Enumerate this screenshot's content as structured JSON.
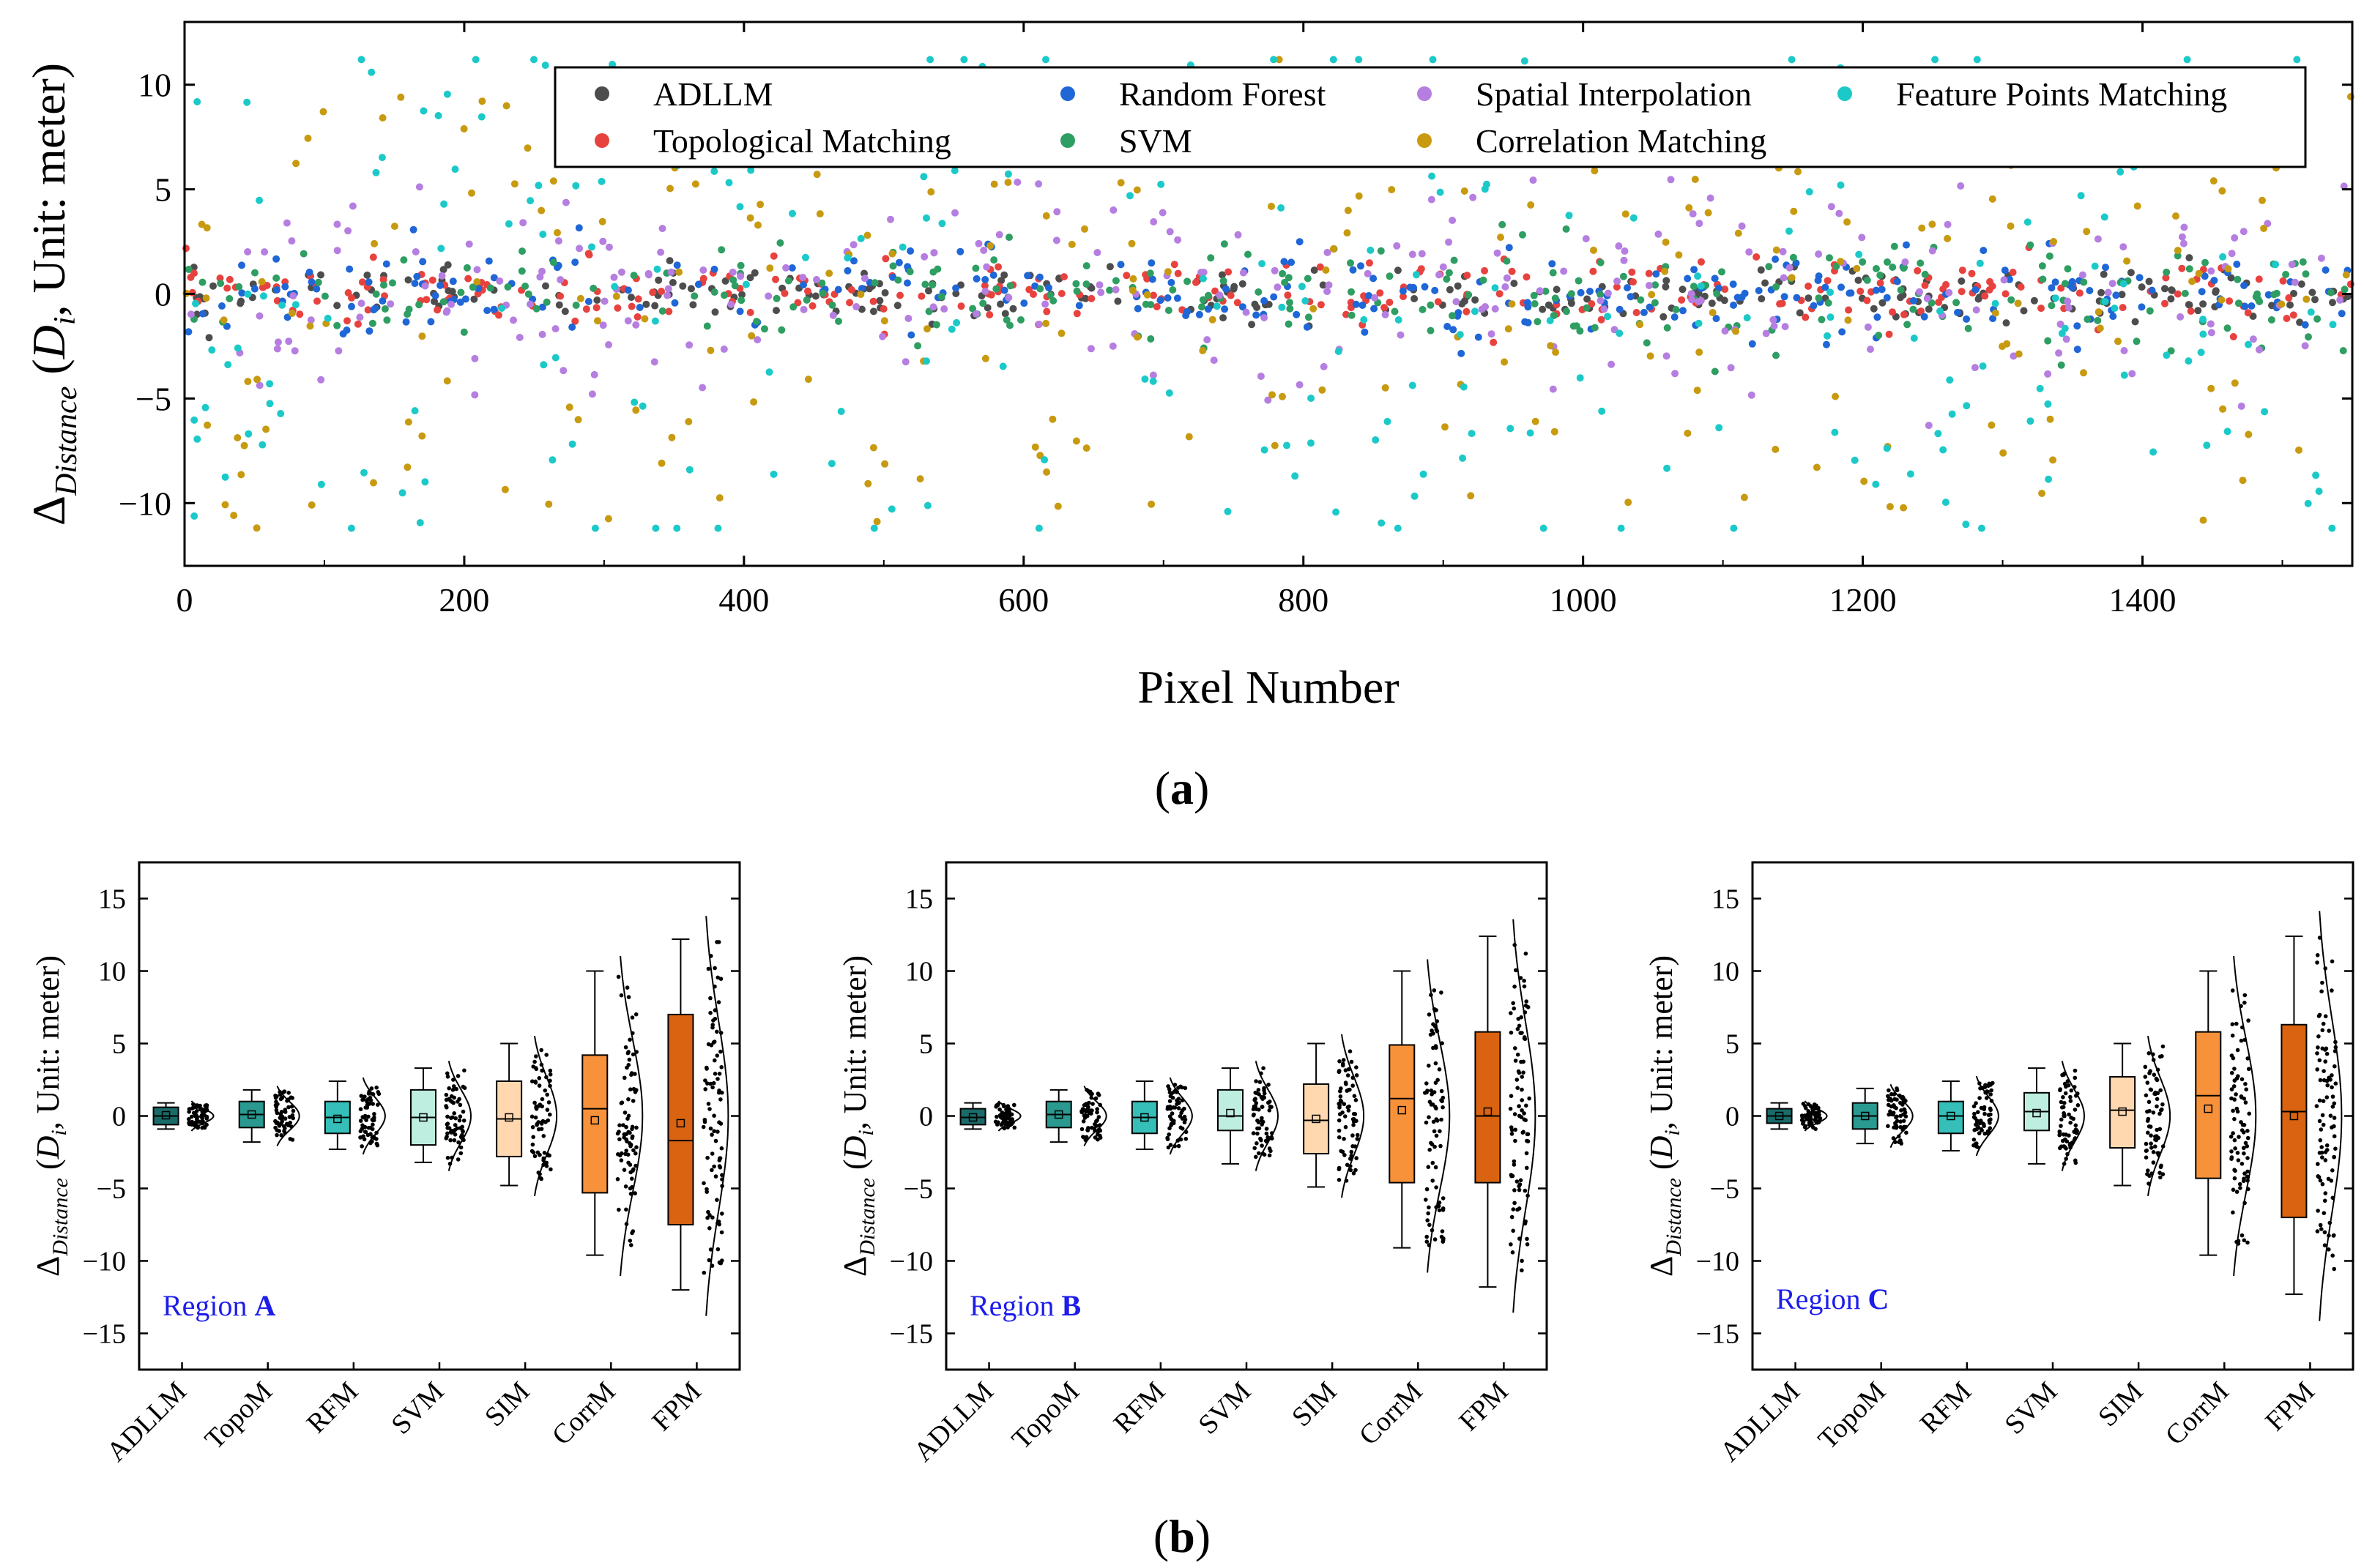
{
  "chart_data": [
    {
      "type": "scatter",
      "panel_label": "a",
      "xlabel": "Pixel Number",
      "ylabel": "Distance (D, Unit: meter)",
      "xlim": [
        0,
        1550
      ],
      "ylim": [
        -13,
        13
      ],
      "xticks": [
        0,
        200,
        400,
        600,
        800,
        1000,
        1200,
        1400
      ],
      "yticks": [
        -10,
        -5,
        0,
        5,
        10
      ],
      "legend_position": "top-right",
      "series": [
        {
          "name": "ADLLM",
          "color": "#4d4d4d",
          "spread": 0.6
        },
        {
          "name": "Topological Matching",
          "color": "#e8423f",
          "spread": 0.8
        },
        {
          "name": "Random Forest",
          "color": "#1f66d6",
          "spread": 1.0
        },
        {
          "name": "SVM",
          "color": "#2e9e62",
          "spread": 1.3
        },
        {
          "name": "Spatial Interpolation",
          "color": "#b57ee0",
          "spread": 2.4
        },
        {
          "name": "Correlation Matching",
          "color": "#c89a10",
          "spread": 5.2
        },
        {
          "name": "Feature Points Matching",
          "color": "#1cc9c9",
          "spread": 6.0
        }
      ]
    },
    {
      "type": "box",
      "panel_label": "b",
      "ylabel": "Distance (D, Unit: meter)",
      "ylim": [
        -17.5,
        17.5
      ],
      "yticks": [
        -15,
        -10,
        -5,
        0,
        5,
        10,
        15
      ],
      "categories": [
        "ADLLM",
        "TopoM",
        "RFM",
        "SVM",
        "SIM",
        "CorrM",
        "FPM"
      ],
      "box_colors": [
        "#1a6b68",
        "#2a9990",
        "#35bfb8",
        "#bdeee0",
        "#ffd8b0",
        "#f7923b",
        "#d96310"
      ],
      "regions": [
        {
          "label_prefix": "Region ",
          "label_bold": "A",
          "boxes": [
            {
              "q1": -0.6,
              "median": 0.0,
              "q3": 0.6,
              "min": -0.9,
              "max": 0.9,
              "mean": 0.05,
              "spread": 0.9
            },
            {
              "q1": -0.8,
              "median": 0.1,
              "q3": 1.0,
              "min": -1.8,
              "max": 1.8,
              "mean": 0.1,
              "spread": 1.8
            },
            {
              "q1": -1.2,
              "median": -0.1,
              "q3": 1.0,
              "min": -2.3,
              "max": 2.4,
              "mean": -0.2,
              "spread": 2.3
            },
            {
              "q1": -2.0,
              "median": -0.1,
              "q3": 1.8,
              "min": -3.2,
              "max": 3.3,
              "mean": -0.1,
              "spread": 3.3
            },
            {
              "q1": -2.8,
              "median": -0.2,
              "q3": 2.4,
              "min": -4.8,
              "max": 5.0,
              "mean": -0.1,
              "spread": 4.8
            },
            {
              "q1": -5.3,
              "median": 0.5,
              "q3": 4.2,
              "min": -9.6,
              "max": 10.0,
              "mean": -0.3,
              "spread": 9.6
            },
            {
              "q1": -7.5,
              "median": -1.7,
              "q3": 7.0,
              "min": -12.0,
              "max": 12.2,
              "mean": -0.5,
              "spread": 12.0
            }
          ]
        },
        {
          "label_prefix": "Region ",
          "label_bold": "B",
          "boxes": [
            {
              "q1": -0.6,
              "median": -0.1,
              "q3": 0.5,
              "min": -0.9,
              "max": 0.9,
              "mean": -0.1,
              "spread": 0.9
            },
            {
              "q1": -0.8,
              "median": 0.1,
              "q3": 1.0,
              "min": -1.8,
              "max": 1.8,
              "mean": 0.1,
              "spread": 1.8
            },
            {
              "q1": -1.2,
              "median": -0.1,
              "q3": 1.0,
              "min": -2.3,
              "max": 2.4,
              "mean": -0.1,
              "spread": 2.3
            },
            {
              "q1": -1.0,
              "median": 0.0,
              "q3": 1.8,
              "min": -3.3,
              "max": 3.3,
              "mean": 0.2,
              "spread": 3.3
            },
            {
              "q1": -2.6,
              "median": -0.3,
              "q3": 2.2,
              "min": -4.9,
              "max": 5.0,
              "mean": -0.2,
              "spread": 4.9
            },
            {
              "q1": -4.6,
              "median": 1.2,
              "q3": 4.9,
              "min": -9.1,
              "max": 10.0,
              "mean": 0.4,
              "spread": 9.4
            },
            {
              "q1": -4.6,
              "median": 0.0,
              "q3": 5.8,
              "min": -11.8,
              "max": 12.4,
              "mean": 0.3,
              "spread": 11.8
            }
          ]
        },
        {
          "label_prefix": "Region ",
          "label_bold": "C",
          "boxes": [
            {
              "q1": -0.5,
              "median": 0.0,
              "q3": 0.5,
              "min": -0.9,
              "max": 0.9,
              "mean": 0.0,
              "spread": 0.9
            },
            {
              "q1": -0.9,
              "median": 0.0,
              "q3": 0.9,
              "min": -1.9,
              "max": 1.9,
              "mean": 0.0,
              "spread": 1.9
            },
            {
              "q1": -1.2,
              "median": 0.0,
              "q3": 1.0,
              "min": -2.4,
              "max": 2.4,
              "mean": 0.0,
              "spread": 2.4
            },
            {
              "q1": -1.0,
              "median": 0.3,
              "q3": 1.6,
              "min": -3.3,
              "max": 3.3,
              "mean": 0.2,
              "spread": 3.3
            },
            {
              "q1": -2.2,
              "median": 0.4,
              "q3": 2.7,
              "min": -4.8,
              "max": 5.0,
              "mean": 0.3,
              "spread": 4.8
            },
            {
              "q1": -4.3,
              "median": 1.4,
              "q3": 5.8,
              "min": -9.6,
              "max": 10.0,
              "mean": 0.5,
              "spread": 9.6
            },
            {
              "q1": -7.0,
              "median": 0.3,
              "q3": 6.3,
              "min": -12.3,
              "max": 12.4,
              "mean": 0.0,
              "spread": 12.3
            }
          ]
        }
      ]
    }
  ]
}
